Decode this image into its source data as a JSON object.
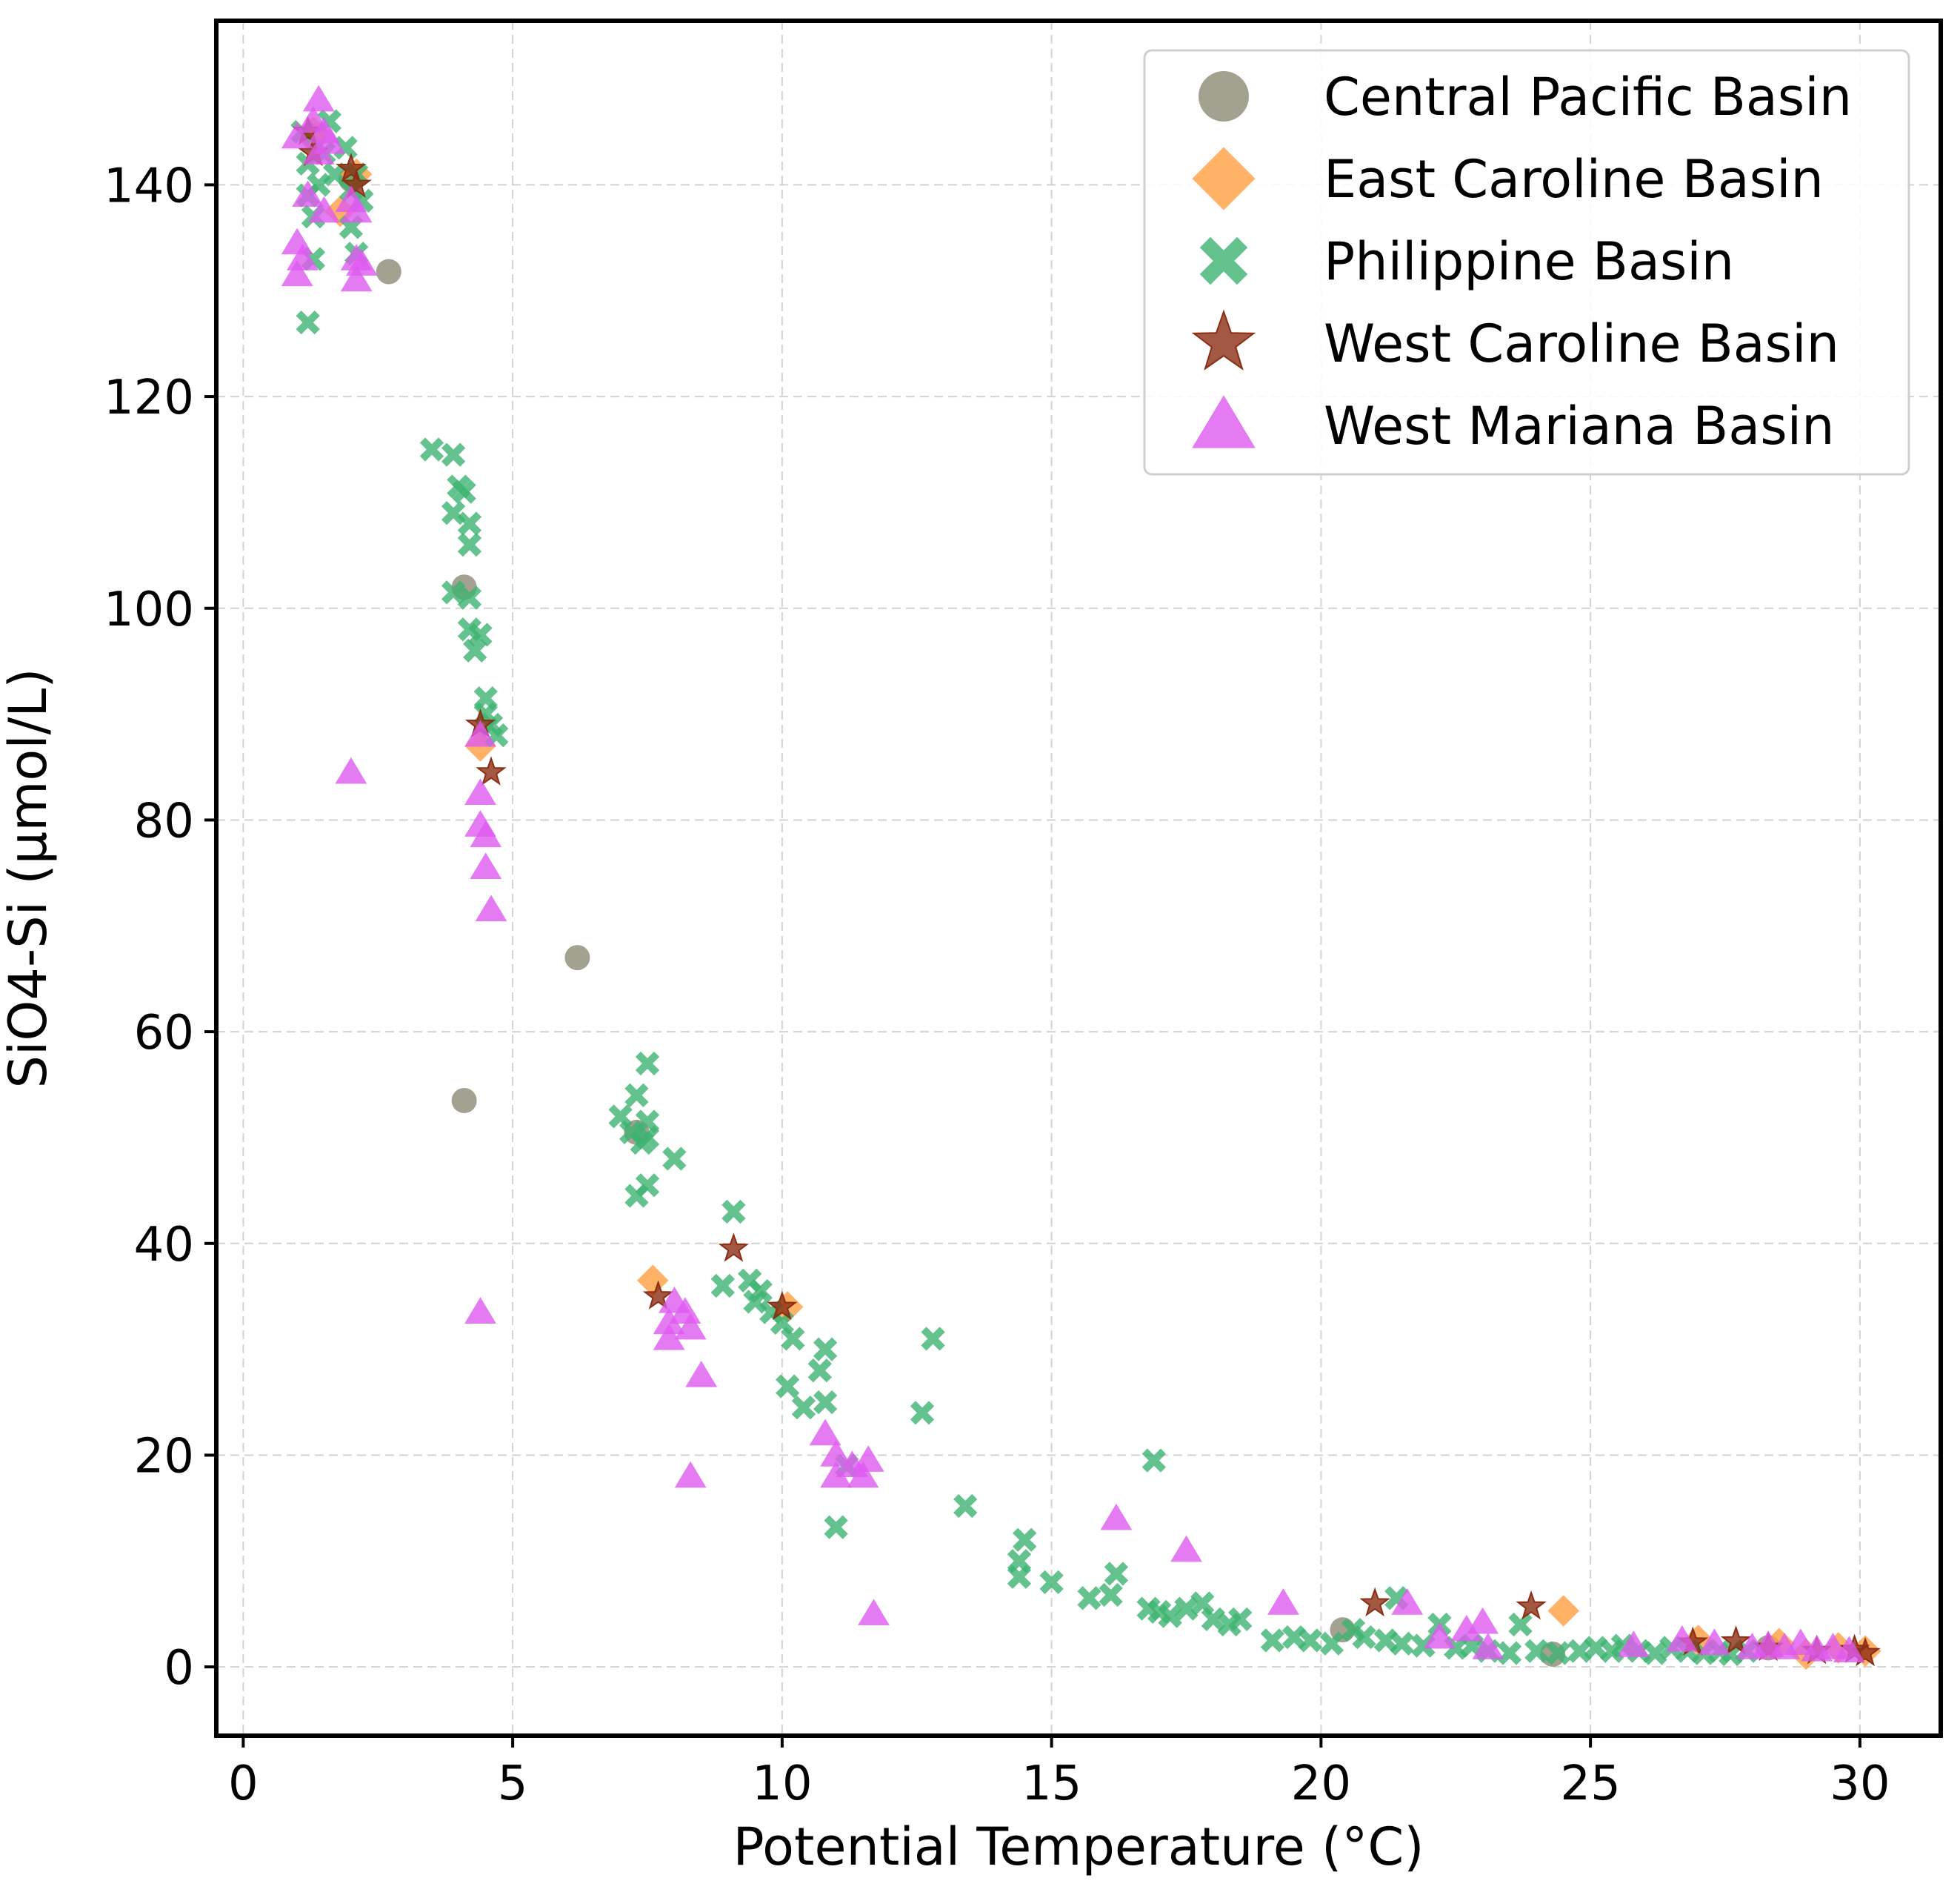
{
  "chart_data": {
    "type": "scatter",
    "title": "",
    "xlabel": "Potential Temperature (°C)",
    "ylabel": "SiO4-Si (μmol/L)",
    "xlim": [
      -0.5,
      31.5
    ],
    "ylim": [
      -6.5,
      155.5
    ],
    "xticks": [
      0,
      5,
      10,
      15,
      20,
      25,
      30
    ],
    "yticks": [
      0,
      20,
      40,
      60,
      80,
      100,
      120,
      140
    ],
    "grid": true,
    "legend_position": "top-right",
    "series": [
      {
        "name": "Central Pacific Basin",
        "marker": "circle",
        "color": "#8c8a74",
        "points": [
          [
            2.7,
            131.8
          ],
          [
            4.1,
            102.0
          ],
          [
            4.1,
            53.5
          ],
          [
            6.2,
            67.0
          ],
          [
            7.3,
            50.5
          ],
          [
            20.4,
            3.5
          ],
          [
            1.3,
            144.5
          ],
          [
            2.0,
            140.5
          ],
          [
            24.3,
            1.2
          ],
          [
            28.3,
            1.8
          ]
        ]
      },
      {
        "name": "East Caroline Basin",
        "marker": "diamond",
        "color": "#ff9f40",
        "points": [
          [
            1.3,
            145.0
          ],
          [
            1.8,
            137.5
          ],
          [
            2.1,
            141.0
          ],
          [
            4.4,
            87.0
          ],
          [
            7.6,
            36.5
          ],
          [
            10.1,
            34.0
          ],
          [
            24.5,
            5.3
          ],
          [
            27.0,
            2.5
          ],
          [
            28.5,
            2.2
          ],
          [
            29.0,
            1.2
          ],
          [
            29.6,
            1.8
          ],
          [
            30.1,
            1.5
          ]
        ]
      },
      {
        "name": "Philippine Basin",
        "marker": "x",
        "color": "#3cb371",
        "points": [
          [
            1.1,
            145.0
          ],
          [
            1.2,
            142.0
          ],
          [
            1.2,
            139.0
          ],
          [
            1.3,
            137.0
          ],
          [
            1.3,
            133.0
          ],
          [
            1.2,
            127.0
          ],
          [
            1.4,
            140.0
          ],
          [
            1.5,
            143.0
          ],
          [
            1.6,
            146.0
          ],
          [
            1.7,
            141.0
          ],
          [
            1.9,
            143.5
          ],
          [
            2.0,
            139.5
          ],
          [
            2.0,
            136.0
          ],
          [
            2.1,
            133.5
          ],
          [
            2.1,
            141.0
          ],
          [
            2.2,
            138.5
          ],
          [
            3.5,
            115.0
          ],
          [
            3.9,
            114.5
          ],
          [
            4.0,
            111.5
          ],
          [
            4.1,
            111.0
          ],
          [
            4.2,
            108.0
          ],
          [
            4.2,
            106.0
          ],
          [
            3.9,
            109.0
          ],
          [
            3.9,
            101.5
          ],
          [
            4.2,
            101.0
          ],
          [
            4.2,
            98.0
          ],
          [
            4.3,
            96.0
          ],
          [
            4.4,
            97.5
          ],
          [
            4.5,
            91.5
          ],
          [
            4.5,
            90.0
          ],
          [
            4.6,
            89.0
          ],
          [
            4.7,
            88.0
          ],
          [
            7.0,
            52.0
          ],
          [
            7.2,
            50.5
          ],
          [
            7.3,
            54.0
          ],
          [
            7.4,
            49.5
          ],
          [
            7.5,
            51.5
          ],
          [
            7.5,
            57.0
          ],
          [
            7.5,
            50.0
          ],
          [
            7.3,
            44.5
          ],
          [
            7.5,
            45.5
          ],
          [
            8.0,
            48.0
          ],
          [
            8.9,
            36.0
          ],
          [
            9.1,
            43.0
          ],
          [
            9.4,
            36.5
          ],
          [
            9.5,
            34.5
          ],
          [
            9.6,
            35.5
          ],
          [
            9.8,
            33.5
          ],
          [
            10.0,
            32.5
          ],
          [
            10.2,
            31.0
          ],
          [
            10.1,
            26.5
          ],
          [
            10.4,
            24.5
          ],
          [
            10.7,
            28.0
          ],
          [
            10.8,
            30.0
          ],
          [
            10.8,
            25.0
          ],
          [
            11.0,
            13.2
          ],
          [
            11.2,
            19.0
          ],
          [
            12.6,
            24.0
          ],
          [
            12.8,
            31.0
          ],
          [
            13.4,
            15.2
          ],
          [
            14.4,
            10.0
          ],
          [
            14.5,
            12.0
          ],
          [
            14.4,
            8.5
          ],
          [
            15.0,
            8.0
          ],
          [
            15.7,
            6.5
          ],
          [
            16.1,
            6.8
          ],
          [
            16.2,
            8.8
          ],
          [
            16.9,
            19.5
          ],
          [
            16.8,
            5.5
          ],
          [
            17.0,
            5.2
          ],
          [
            17.2,
            4.8
          ],
          [
            17.5,
            5.5
          ],
          [
            17.8,
            6.0
          ],
          [
            18.0,
            4.5
          ],
          [
            18.3,
            4.0
          ],
          [
            18.5,
            4.5
          ],
          [
            19.1,
            2.5
          ],
          [
            19.5,
            2.8
          ],
          [
            19.8,
            2.5
          ],
          [
            20.2,
            2.2
          ],
          [
            20.6,
            3.5
          ],
          [
            20.8,
            2.8
          ],
          [
            21.2,
            2.5
          ],
          [
            21.4,
            6.5
          ],
          [
            21.5,
            2.2
          ],
          [
            21.9,
            2.0
          ],
          [
            22.2,
            4.0
          ],
          [
            22.5,
            1.8
          ],
          [
            22.8,
            2.0
          ],
          [
            23.1,
            1.5
          ],
          [
            23.5,
            1.3
          ],
          [
            23.7,
            4.0
          ],
          [
            24.0,
            1.5
          ],
          [
            24.4,
            1.3
          ],
          [
            24.8,
            1.5
          ],
          [
            25.1,
            1.8
          ],
          [
            25.4,
            1.5
          ],
          [
            25.6,
            2.0
          ],
          [
            25.9,
            1.5
          ],
          [
            26.2,
            1.3
          ],
          [
            26.5,
            1.8
          ],
          [
            26.8,
            1.5
          ],
          [
            27.1,
            1.3
          ],
          [
            27.4,
            1.5
          ],
          [
            27.6,
            1.2
          ],
          [
            27.9,
            1.5
          ]
        ]
      },
      {
        "name": "West Caroline Basin",
        "marker": "star",
        "color": "#8b2e14",
        "points": [
          [
            1.2,
            145.0
          ],
          [
            1.3,
            143.0
          ],
          [
            2.0,
            141.5
          ],
          [
            2.1,
            140.0
          ],
          [
            4.4,
            89.0
          ],
          [
            4.6,
            84.5
          ],
          [
            7.7,
            35.0
          ],
          [
            9.1,
            39.5
          ],
          [
            10.0,
            34.0
          ],
          [
            21.0,
            6.0
          ],
          [
            23.9,
            5.7
          ],
          [
            26.9,
            2.3
          ],
          [
            27.7,
            2.4
          ],
          [
            28.3,
            1.8
          ],
          [
            29.2,
            1.5
          ],
          [
            29.9,
            1.6
          ],
          [
            30.1,
            1.3
          ]
        ]
      },
      {
        "name": "West Mariana Basin",
        "marker": "triangle",
        "color": "#df5af0",
        "points": [
          [
            1.0,
            144.5
          ],
          [
            1.0,
            134.5
          ],
          [
            1.0,
            131.5
          ],
          [
            1.1,
            133.0
          ],
          [
            1.2,
            139.0
          ],
          [
            1.3,
            146.0
          ],
          [
            1.4,
            148.0
          ],
          [
            1.4,
            143.0
          ],
          [
            1.5,
            145.0
          ],
          [
            1.5,
            137.5
          ],
          [
            1.6,
            144.0
          ],
          [
            2.0,
            138.5
          ],
          [
            2.1,
            137.5
          ],
          [
            2.1,
            133.0
          ],
          [
            2.1,
            131.0
          ],
          [
            2.2,
            132.5
          ],
          [
            2.0,
            84.5
          ],
          [
            4.4,
            88.0
          ],
          [
            4.4,
            82.5
          ],
          [
            4.4,
            79.5
          ],
          [
            4.5,
            78.5
          ],
          [
            4.5,
            75.5
          ],
          [
            4.6,
            71.5
          ],
          [
            4.4,
            33.5
          ],
          [
            7.9,
            31.0
          ],
          [
            7.9,
            32.5
          ],
          [
            8.0,
            34.5
          ],
          [
            8.2,
            33.5
          ],
          [
            8.3,
            32.0
          ],
          [
            8.5,
            27.5
          ],
          [
            8.3,
            18.0
          ],
          [
            10.8,
            22.0
          ],
          [
            11.0,
            20.0
          ],
          [
            11.0,
            18.0
          ],
          [
            11.3,
            19.0
          ],
          [
            11.5,
            18.0
          ],
          [
            11.6,
            19.5
          ],
          [
            11.7,
            5.0
          ],
          [
            16.2,
            14.0
          ],
          [
            17.5,
            11.0
          ],
          [
            19.3,
            6.0
          ],
          [
            21.6,
            6.0
          ],
          [
            22.2,
            2.8
          ],
          [
            22.7,
            3.5
          ],
          [
            23.0,
            4.2
          ],
          [
            23.1,
            1.8
          ],
          [
            25.8,
            2.0
          ],
          [
            26.7,
            2.5
          ],
          [
            27.3,
            2.2
          ],
          [
            28.0,
            1.8
          ],
          [
            28.3,
            2.0
          ],
          [
            28.6,
            1.8
          ],
          [
            28.9,
            2.2
          ],
          [
            29.2,
            1.6
          ],
          [
            29.5,
            1.8
          ],
          [
            29.8,
            1.5
          ]
        ]
      }
    ]
  }
}
